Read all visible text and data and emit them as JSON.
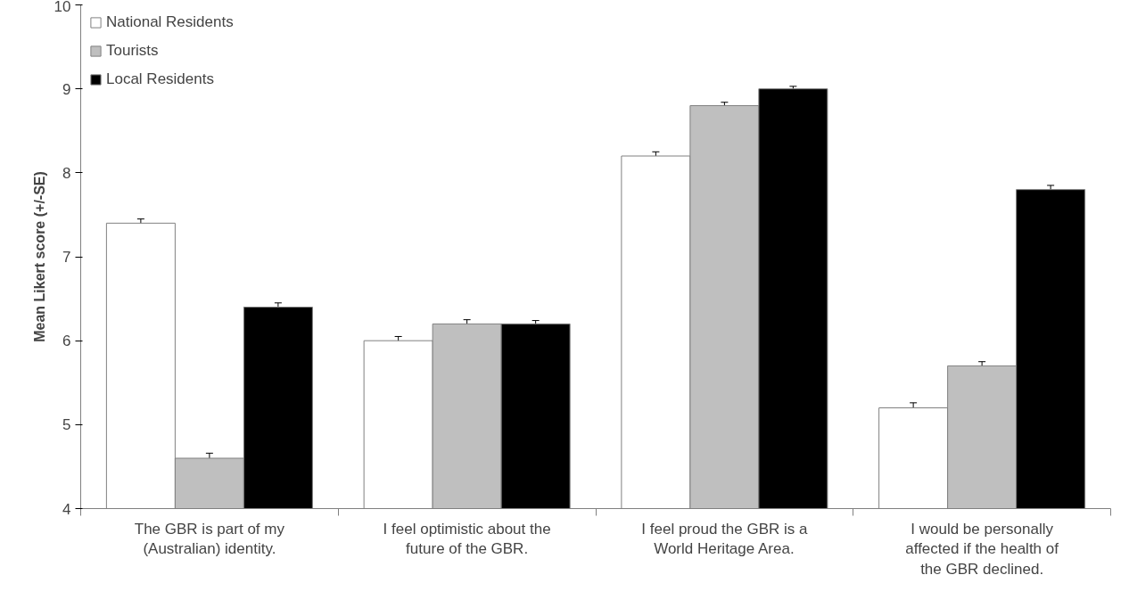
{
  "chart_data": {
    "type": "bar",
    "ylabel": "Mean Likert score (+/-SE)",
    "categories": [
      "The GBR is part of my (Australian) identity.",
      "I feel optimistic about the future of the GBR.",
      "I feel proud the GBR is a World Heritage Area.",
      "I would be personally affected if the health of the GBR declined."
    ],
    "series": [
      {
        "name": "National Residents",
        "color": "#ffffff",
        "values": [
          7.4,
          6.0,
          8.2,
          5.2
        ],
        "errors": [
          0.05,
          0.05,
          0.05,
          0.06
        ]
      },
      {
        "name": "Tourists",
        "color": "#bfbfbf",
        "values": [
          4.6,
          6.2,
          8.8,
          5.7
        ],
        "errors": [
          0.06,
          0.05,
          0.04,
          0.05
        ]
      },
      {
        "name": "Local Residents",
        "color": "#000000",
        "values": [
          6.4,
          6.2,
          9.0,
          7.8
        ],
        "errors": [
          0.05,
          0.04,
          0.03,
          0.05
        ]
      }
    ],
    "ylim": [
      4,
      10
    ],
    "yticks": [
      4,
      5,
      6,
      7,
      8,
      9,
      10
    ],
    "grid": false,
    "legend": "top left"
  }
}
